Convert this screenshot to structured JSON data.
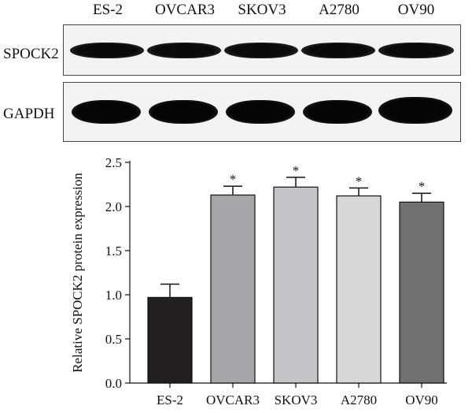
{
  "blot": {
    "lanes": [
      "ES-2",
      "OVCAR3",
      "SKOV3",
      "A2780",
      "OV90"
    ],
    "rows": [
      {
        "label": "SPOCK2"
      },
      {
        "label": "GAPDH"
      }
    ]
  },
  "chart_data": {
    "type": "bar",
    "categories": [
      "ES-2",
      "OVCAR3",
      "SKOV3",
      "A2780",
      "OV90"
    ],
    "values": [
      0.97,
      2.13,
      2.22,
      2.12,
      2.05
    ],
    "errors": [
      0.15,
      0.1,
      0.11,
      0.09,
      0.1
    ],
    "significance": [
      "",
      "*",
      "*",
      "*",
      "*"
    ],
    "colors": [
      "#231f20",
      "#a7a6ab",
      "#c5c5c9",
      "#d8d8d8",
      "#717171"
    ],
    "xlabel": "",
    "ylabel": "Relative SPOCK2 protein expression",
    "ylim": [
      0,
      2.5
    ],
    "yticks": [
      "0.0",
      "0.5",
      "1.0",
      "1.5",
      "2.0",
      "2.5"
    ],
    "grid": false
  }
}
